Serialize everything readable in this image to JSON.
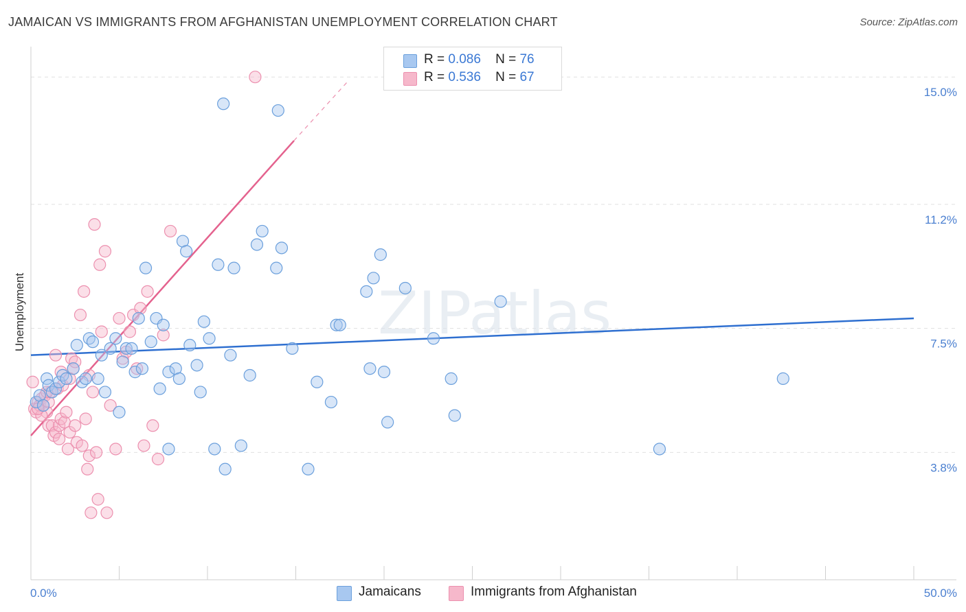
{
  "title": "JAMAICAN VS IMMIGRANTS FROM AFGHANISTAN UNEMPLOYMENT CORRELATION CHART",
  "source": "Source: ZipAtlas.com",
  "watermark": "ZIPatlas",
  "legend": {
    "rows": [
      {
        "r_label": "R =",
        "r_value": "0.086",
        "n_label": "N =",
        "n_value": "76"
      },
      {
        "r_label": "R =",
        "r_value": "0.536",
        "n_label": "N =",
        "n_value": "67"
      }
    ]
  },
  "bottom_legend": {
    "series1": "Jamaicans",
    "series2": "Immigrants from Afghanistan"
  },
  "colors": {
    "blue_fill": "#a8c8f0",
    "blue_stroke": "#6a9fdc",
    "blue_line": "#2e6fd0",
    "pink_fill": "#f6b8cb",
    "pink_stroke": "#ec8fae",
    "pink_line": "#e4628e",
    "grid": "#e0e0e0",
    "tick_text": "#4a7fd0"
  },
  "chart_data": {
    "type": "scatter",
    "title": "JAMAICAN VS IMMIGRANTS FROM AFGHANISTAN UNEMPLOYMENT CORRELATION CHART",
    "xlabel": "",
    "ylabel": "Unemployment",
    "xlim": [
      0,
      50
    ],
    "ylim": [
      0,
      15.7
    ],
    "x_tick_labels": [
      "0.0%",
      "50.0%"
    ],
    "y_ticks": [
      3.8,
      7.5,
      11.2,
      15.0
    ],
    "y_tick_labels": [
      "3.8%",
      "7.5%",
      "11.2%",
      "15.0%"
    ],
    "grid": true,
    "series": [
      {
        "name": "Jamaicans",
        "R": 0.086,
        "N": 76,
        "trend": {
          "x": [
            0,
            50
          ],
          "y": [
            6.7,
            7.8
          ],
          "style": "solid"
        },
        "points": [
          [
            0.3,
            5.3
          ],
          [
            0.5,
            5.5
          ],
          [
            0.7,
            5.2
          ],
          [
            0.9,
            6.0
          ],
          [
            1.0,
            5.8
          ],
          [
            1.2,
            5.6
          ],
          [
            1.4,
            5.7
          ],
          [
            1.6,
            5.9
          ],
          [
            1.8,
            6.1
          ],
          [
            2.0,
            6.0
          ],
          [
            2.4,
            6.3
          ],
          [
            2.6,
            7.0
          ],
          [
            2.9,
            5.9
          ],
          [
            3.1,
            6.0
          ],
          [
            3.3,
            7.2
          ],
          [
            3.5,
            7.1
          ],
          [
            3.8,
            6.0
          ],
          [
            4.0,
            6.7
          ],
          [
            4.2,
            5.6
          ],
          [
            4.5,
            6.9
          ],
          [
            4.8,
            7.2
          ],
          [
            5.0,
            5.0
          ],
          [
            5.2,
            6.5
          ],
          [
            5.4,
            6.9
          ],
          [
            5.7,
            6.9
          ],
          [
            5.9,
            6.2
          ],
          [
            6.1,
            7.8
          ],
          [
            6.3,
            6.3
          ],
          [
            6.5,
            9.3
          ],
          [
            6.8,
            7.1
          ],
          [
            7.1,
            7.8
          ],
          [
            7.3,
            5.7
          ],
          [
            7.5,
            7.6
          ],
          [
            7.8,
            3.9
          ],
          [
            7.8,
            6.2
          ],
          [
            8.2,
            6.3
          ],
          [
            8.4,
            6.0
          ],
          [
            8.6,
            10.1
          ],
          [
            8.8,
            9.8
          ],
          [
            9.0,
            7.0
          ],
          [
            9.4,
            6.4
          ],
          [
            9.6,
            5.6
          ],
          [
            9.8,
            7.7
          ],
          [
            10.1,
            7.2
          ],
          [
            10.4,
            3.9
          ],
          [
            10.6,
            9.4
          ],
          [
            10.9,
            14.2
          ],
          [
            11.0,
            3.3
          ],
          [
            11.3,
            6.7
          ],
          [
            11.5,
            9.3
          ],
          [
            11.9,
            4.0
          ],
          [
            12.4,
            6.1
          ],
          [
            12.8,
            10.0
          ],
          [
            13.1,
            10.4
          ],
          [
            13.9,
            9.3
          ],
          [
            14.0,
            14.0
          ],
          [
            14.2,
            9.9
          ],
          [
            14.8,
            6.9
          ],
          [
            15.7,
            3.3
          ],
          [
            16.2,
            5.9
          ],
          [
            17.0,
            5.3
          ],
          [
            17.3,
            7.6
          ],
          [
            17.5,
            7.6
          ],
          [
            19.0,
            8.6
          ],
          [
            19.2,
            6.3
          ],
          [
            19.4,
            9.0
          ],
          [
            19.8,
            9.7
          ],
          [
            20.0,
            6.2
          ],
          [
            20.2,
            4.7
          ],
          [
            21.2,
            8.7
          ],
          [
            22.8,
            7.2
          ],
          [
            23.8,
            6.0
          ],
          [
            24.0,
            4.9
          ],
          [
            26.6,
            8.3
          ],
          [
            35.6,
            3.9
          ],
          [
            42.6,
            6.0
          ]
        ]
      },
      {
        "name": "Immigrants from Afghanistan",
        "R": 0.536,
        "N": 67,
        "trend": {
          "x": [
            0,
            14.9
          ],
          "y": [
            4.3,
            13.1
          ],
          "style": "solid",
          "extension": {
            "x": [
              14.9,
              18.0
            ],
            "y": [
              13.1,
              14.9
            ],
            "style": "dashed"
          }
        },
        "points": [
          [
            0.1,
            5.9
          ],
          [
            0.2,
            5.1
          ],
          [
            0.3,
            5.0
          ],
          [
            0.4,
            5.3
          ],
          [
            0.5,
            5.2
          ],
          [
            0.6,
            5.4
          ],
          [
            0.7,
            5.2
          ],
          [
            0.8,
            5.5
          ],
          [
            0.9,
            5.0
          ],
          [
            1.0,
            4.6
          ],
          [
            1.0,
            5.3
          ],
          [
            1.1,
            5.6
          ],
          [
            1.2,
            4.6
          ],
          [
            1.3,
            4.3
          ],
          [
            1.4,
            4.4
          ],
          [
            1.5,
            5.7
          ],
          [
            1.6,
            4.2
          ],
          [
            1.6,
            4.6
          ],
          [
            1.7,
            4.8
          ],
          [
            1.8,
            5.8
          ],
          [
            1.9,
            4.7
          ],
          [
            2.0,
            5.0
          ],
          [
            2.1,
            3.9
          ],
          [
            2.2,
            4.4
          ],
          [
            2.3,
            6.6
          ],
          [
            2.4,
            6.3
          ],
          [
            2.5,
            4.6
          ],
          [
            2.6,
            4.1
          ],
          [
            2.8,
            7.9
          ],
          [
            2.9,
            4.0
          ],
          [
            3.0,
            8.6
          ],
          [
            3.1,
            4.8
          ],
          [
            3.2,
            3.3
          ],
          [
            3.3,
            3.7
          ],
          [
            3.4,
            2.0
          ],
          [
            3.5,
            5.6
          ],
          [
            3.6,
            10.6
          ],
          [
            3.7,
            3.8
          ],
          [
            3.8,
            2.4
          ],
          [
            3.9,
            9.4
          ],
          [
            4.0,
            7.4
          ],
          [
            4.2,
            9.8
          ],
          [
            4.3,
            2.0
          ],
          [
            4.5,
            5.2
          ],
          [
            4.8,
            3.9
          ],
          [
            5.0,
            7.8
          ],
          [
            5.2,
            6.6
          ],
          [
            5.4,
            6.8
          ],
          [
            5.6,
            7.4
          ],
          [
            5.8,
            7.9
          ],
          [
            6.0,
            6.3
          ],
          [
            6.2,
            8.1
          ],
          [
            6.4,
            4.0
          ],
          [
            6.6,
            8.6
          ],
          [
            6.9,
            4.6
          ],
          [
            7.2,
            3.6
          ],
          [
            7.5,
            7.3
          ],
          [
            7.9,
            10.4
          ],
          [
            2.2,
            6.0
          ],
          [
            1.4,
            6.7
          ],
          [
            0.6,
            4.9
          ],
          [
            0.9,
            5.6
          ],
          [
            1.7,
            6.2
          ],
          [
            2.5,
            6.5
          ],
          [
            3.3,
            6.1
          ],
          [
            0.4,
            5.1
          ],
          [
            12.7,
            15.0
          ]
        ]
      }
    ]
  }
}
